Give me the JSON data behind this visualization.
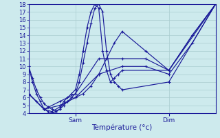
{
  "background_color": "#cdeaed",
  "grid_color": "#aacdd0",
  "line_color": "#1a1a99",
  "xlabel": "Température (°c)",
  "y_min": 4,
  "y_max": 18,
  "y_ticks": [
    4,
    5,
    6,
    7,
    8,
    9,
    10,
    11,
    12,
    13,
    14,
    15,
    16,
    17,
    18
  ],
  "x_min": 0,
  "x_max": 48,
  "sam_x": 12,
  "dim_x": 36,
  "series": [
    {
      "x": [
        0,
        1,
        2,
        3,
        4,
        5,
        6,
        7,
        8,
        9,
        10,
        11,
        12,
        13,
        14,
        15,
        16,
        17,
        18,
        19,
        20,
        21,
        22,
        23,
        24,
        36,
        48
      ],
      "y": [
        10,
        8.5,
        7,
        6,
        5.2,
        4.8,
        4.5,
        4.3,
        4.5,
        5,
        5.5,
        6,
        6.5,
        8,
        10.5,
        13,
        15.5,
        17.5,
        18,
        17,
        12,
        9,
        8,
        7.5,
        7,
        8,
        18
      ]
    },
    {
      "x": [
        0,
        1,
        2,
        3,
        4,
        5,
        6,
        7,
        8,
        9,
        10,
        11,
        12,
        13,
        14,
        15,
        16,
        17,
        18,
        19,
        20,
        21,
        22,
        23,
        24,
        36,
        48
      ],
      "y": [
        10,
        8,
        6.5,
        5.5,
        4.5,
        4.2,
        4.0,
        4.2,
        4.5,
        5.5,
        6.0,
        6.5,
        7.0,
        9,
        12,
        15,
        17,
        18,
        17.5,
        12,
        9.5,
        8,
        8.5,
        9,
        9.5,
        9.5,
        18
      ]
    },
    {
      "x": [
        0,
        2,
        4,
        6,
        8,
        10,
        12,
        14,
        16,
        18,
        20,
        22,
        24,
        30,
        36,
        42,
        48
      ],
      "y": [
        6.5,
        5.5,
        4.5,
        4.2,
        4.8,
        5.5,
        6,
        6.5,
        7.5,
        9,
        11,
        13,
        14.5,
        12,
        9.5,
        14,
        18
      ]
    },
    {
      "x": [
        0,
        4,
        8,
        12,
        18,
        24,
        30,
        36,
        42,
        48
      ],
      "y": [
        6.5,
        4.5,
        5.0,
        6.0,
        9.0,
        10.0,
        10.0,
        9.0,
        13,
        18
      ]
    },
    {
      "x": [
        0,
        4,
        8,
        12,
        18,
        24,
        30,
        36,
        42,
        48
      ],
      "y": [
        6.5,
        4.5,
        5.5,
        6.5,
        11.0,
        11.0,
        11.0,
        9.5,
        14,
        18
      ]
    }
  ]
}
